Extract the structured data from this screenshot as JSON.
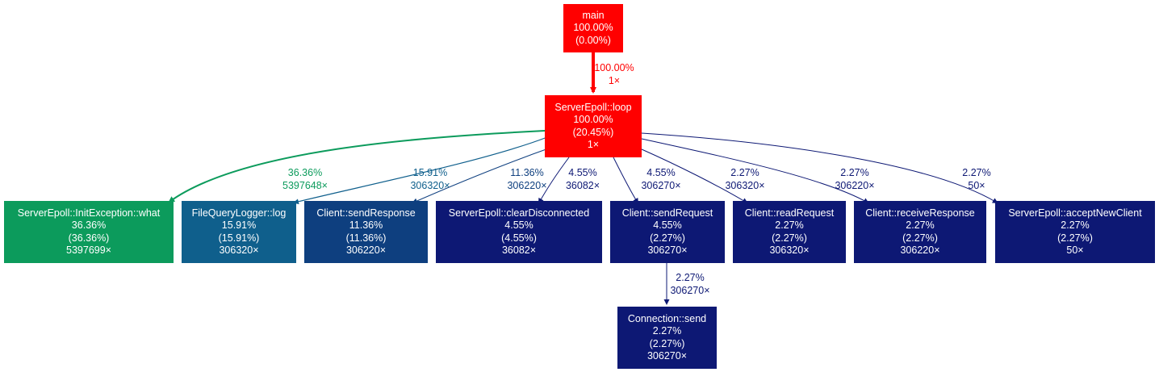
{
  "colors": {
    "hot": "#ff0000",
    "green": "#0c9b5c",
    "blue_mid": "#0f5f8c",
    "blue_dark": "#0e3f7f",
    "navy": "#0d1874"
  },
  "nodes": {
    "main": {
      "name": "main",
      "total": "100.00%",
      "self": "(0.00%)",
      "calls": "",
      "color": "#ff0000"
    },
    "loop": {
      "name": "ServerEpoll::loop",
      "total": "100.00%",
      "self": "(20.45%)",
      "calls": "1×",
      "color": "#ff0000"
    },
    "what": {
      "name": "ServerEpoll::InitException::what",
      "total": "36.36%",
      "self": "(36.36%)",
      "calls": "5397699×",
      "color": "#0c9b5c"
    },
    "log": {
      "name": "FileQueryLogger::log",
      "total": "15.91%",
      "self": "(15.91%)",
      "calls": "306320×",
      "color": "#0f5f8c"
    },
    "sendResponse": {
      "name": "Client::sendResponse",
      "total": "11.36%",
      "self": "(11.36%)",
      "calls": "306220×",
      "color": "#0e3f7f"
    },
    "clearDisconnected": {
      "name": "ServerEpoll::clearDisconnected",
      "total": "4.55%",
      "self": "(4.55%)",
      "calls": "36082×",
      "color": "#0d1874"
    },
    "sendRequest": {
      "name": "Client::sendRequest",
      "total": "4.55%",
      "self": "(2.27%)",
      "calls": "306270×",
      "color": "#0d1874"
    },
    "readRequest": {
      "name": "Client::readRequest",
      "total": "2.27%",
      "self": "(2.27%)",
      "calls": "306320×",
      "color": "#0d1874"
    },
    "receiveResponse": {
      "name": "Client::receiveResponse",
      "total": "2.27%",
      "self": "(2.27%)",
      "calls": "306220×",
      "color": "#0d1874"
    },
    "acceptNewClient": {
      "name": "ServerEpoll::acceptNewClient",
      "total": "2.27%",
      "self": "(2.27%)",
      "calls": "50×",
      "color": "#0d1874"
    },
    "connSend": {
      "name": "Connection::send",
      "total": "2.27%",
      "self": "(2.27%)",
      "calls": "306270×",
      "color": "#0d1874"
    }
  },
  "edges": {
    "main_loop": {
      "from": "main",
      "to": "loop",
      "pct": "100.00%",
      "calls": "1×",
      "color": "#ff0000"
    },
    "loop_what": {
      "from": "loop",
      "to": "what",
      "pct": "36.36%",
      "calls": "5397648×",
      "color": "#0c9b5c"
    },
    "loop_log": {
      "from": "loop",
      "to": "log",
      "pct": "15.91%",
      "calls": "306320×",
      "color": "#0f5f8c"
    },
    "loop_sendResponse": {
      "from": "loop",
      "to": "sendResponse",
      "pct": "11.36%",
      "calls": "306220×",
      "color": "#0e3f7f"
    },
    "loop_clearDisconnected": {
      "from": "loop",
      "to": "clearDisconnected",
      "pct": "4.55%",
      "calls": "36082×",
      "color": "#0d1874"
    },
    "loop_sendRequest": {
      "from": "loop",
      "to": "sendRequest",
      "pct": "4.55%",
      "calls": "306270×",
      "color": "#0d1874"
    },
    "loop_readRequest": {
      "from": "loop",
      "to": "readRequest",
      "pct": "2.27%",
      "calls": "306320×",
      "color": "#0d1874"
    },
    "loop_receiveResponse": {
      "from": "loop",
      "to": "receiveResponse",
      "pct": "2.27%",
      "calls": "306220×",
      "color": "#0d1874"
    },
    "loop_acceptNewClient": {
      "from": "loop",
      "to": "acceptNewClient",
      "pct": "2.27%",
      "calls": "50×",
      "color": "#0d1874"
    },
    "sendRequest_connSend": {
      "from": "sendRequest",
      "to": "connSend",
      "pct": "2.27%",
      "calls": "306270×",
      "color": "#0d1874"
    }
  }
}
